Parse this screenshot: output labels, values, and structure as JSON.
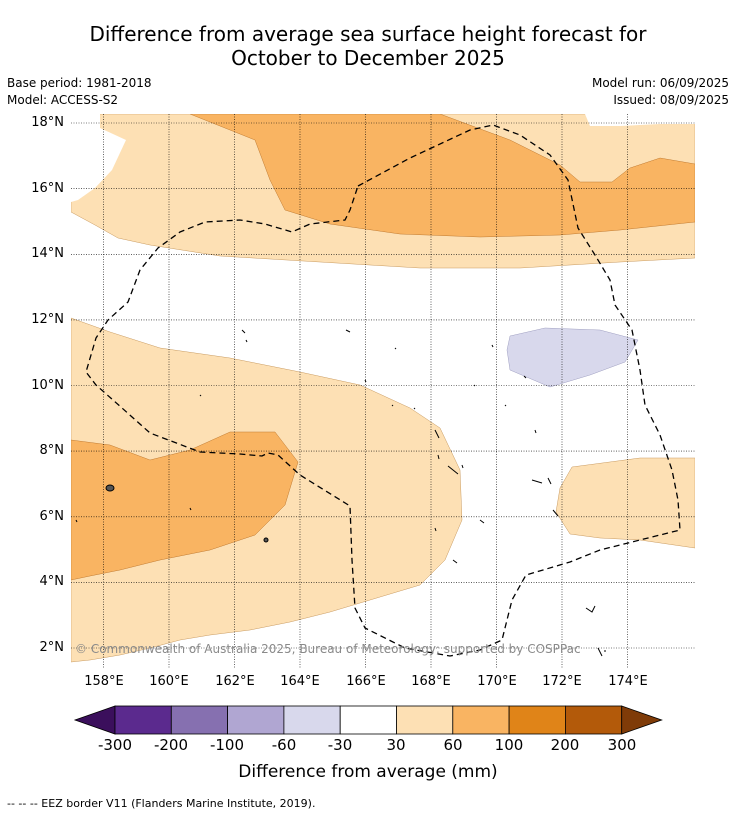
{
  "title_line1": "Difference from average sea surface height forecast for",
  "title_line2": "October to December 2025",
  "base_period": "Base period: 1981-2018",
  "model": "Model: ACCESS-S2",
  "model_run": "Model run: 06/09/2025",
  "issued": "Issued: 08/09/2025",
  "lat_labels": [
    "18°N",
    "16°N",
    "14°N",
    "12°N",
    "10°N",
    "8°N",
    "6°N",
    "4°N",
    "2°N"
  ],
  "lon_labels": [
    "158°E",
    "160°E",
    "162°E",
    "164°E",
    "166°E",
    "168°E",
    "170°E",
    "172°E",
    "174°E"
  ],
  "copyright": "© Commonwealth of Australia 2025, Bureau of Meteorology; supported by COSPPac",
  "colorbar": {
    "ticks": [
      "-300",
      "-200",
      "-100",
      "-60",
      "-30",
      "30",
      "60",
      "100",
      "200",
      "300"
    ],
    "title": "Difference from average (mm)",
    "colors": [
      "#3b0f5c",
      "#5b2a8e",
      "#8670b0",
      "#b0a6d2",
      "#d8d8ec",
      "#ffffff",
      "#fde0b4",
      "#f9b462",
      "#e08418",
      "#b35a0a",
      "#7f3b08"
    ]
  },
  "legend_text": "--  --  -- EEZ border V11 (Flanders Marine Institute, 2019)."
}
